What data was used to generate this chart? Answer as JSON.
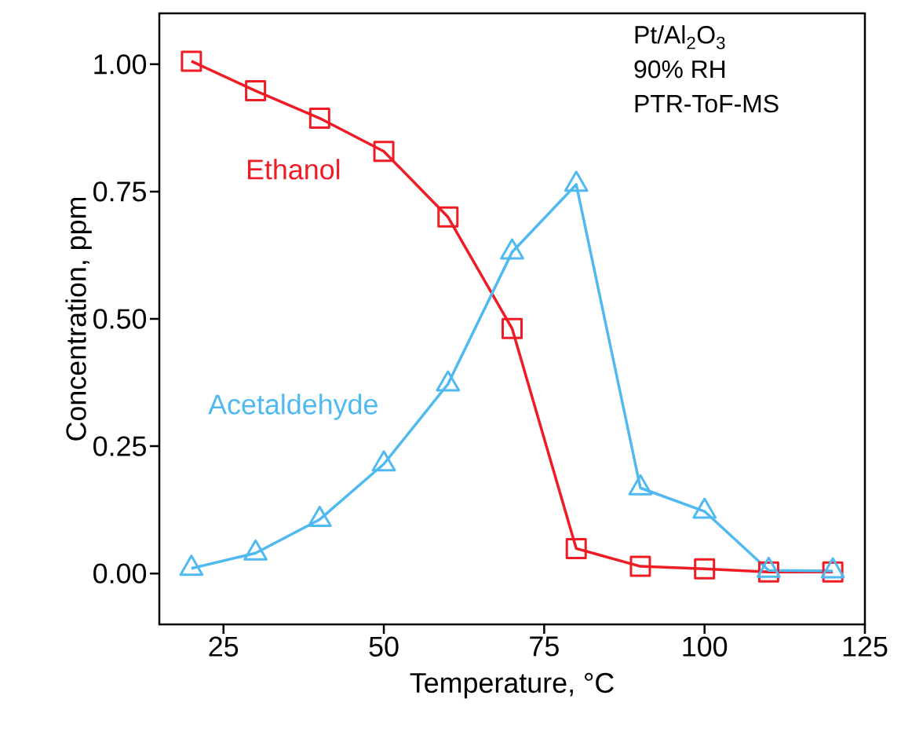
{
  "chart_data": {
    "type": "line",
    "xlabel": "Temperature, °C",
    "ylabel": "Concentration, ppm",
    "xlim": [
      15,
      125
    ],
    "ylim": [
      -0.1,
      1.1
    ],
    "xticks": [
      25,
      50,
      75,
      100,
      125
    ],
    "yticks": [
      {
        "value": 0,
        "label": "0.00"
      },
      {
        "value": 0.25,
        "label": "0.25"
      },
      {
        "value": 0.5,
        "label": "0.50"
      },
      {
        "value": 0.75,
        "label": "0.75"
      },
      {
        "value": 1,
        "label": "1.00"
      }
    ],
    "x": [
      20,
      30,
      40,
      50,
      60,
      70,
      80,
      90,
      100,
      110,
      120
    ],
    "grid": false,
    "legend": false,
    "line_style": "solid",
    "series": [
      {
        "name": "Ethanol",
        "color": "#ee1c25",
        "marker": "square",
        "values": [
          1.006,
          0.948,
          0.894,
          0.829,
          0.7,
          0.481,
          0.049,
          0.014,
          0.009,
          0.003,
          0.003
        ]
      },
      {
        "name": "Acetaldehyde",
        "color": "#4fb9f0",
        "marker": "triangle",
        "values": [
          0.01,
          0.04,
          0.106,
          0.215,
          0.372,
          0.631,
          0.764,
          0.168,
          0.122,
          0.006,
          0.005
        ]
      }
    ],
    "annotations": [
      "Pt/Al$_{2}$O$_{3}$",
      "90% RH",
      "PTR-ToF-MS"
    ]
  }
}
